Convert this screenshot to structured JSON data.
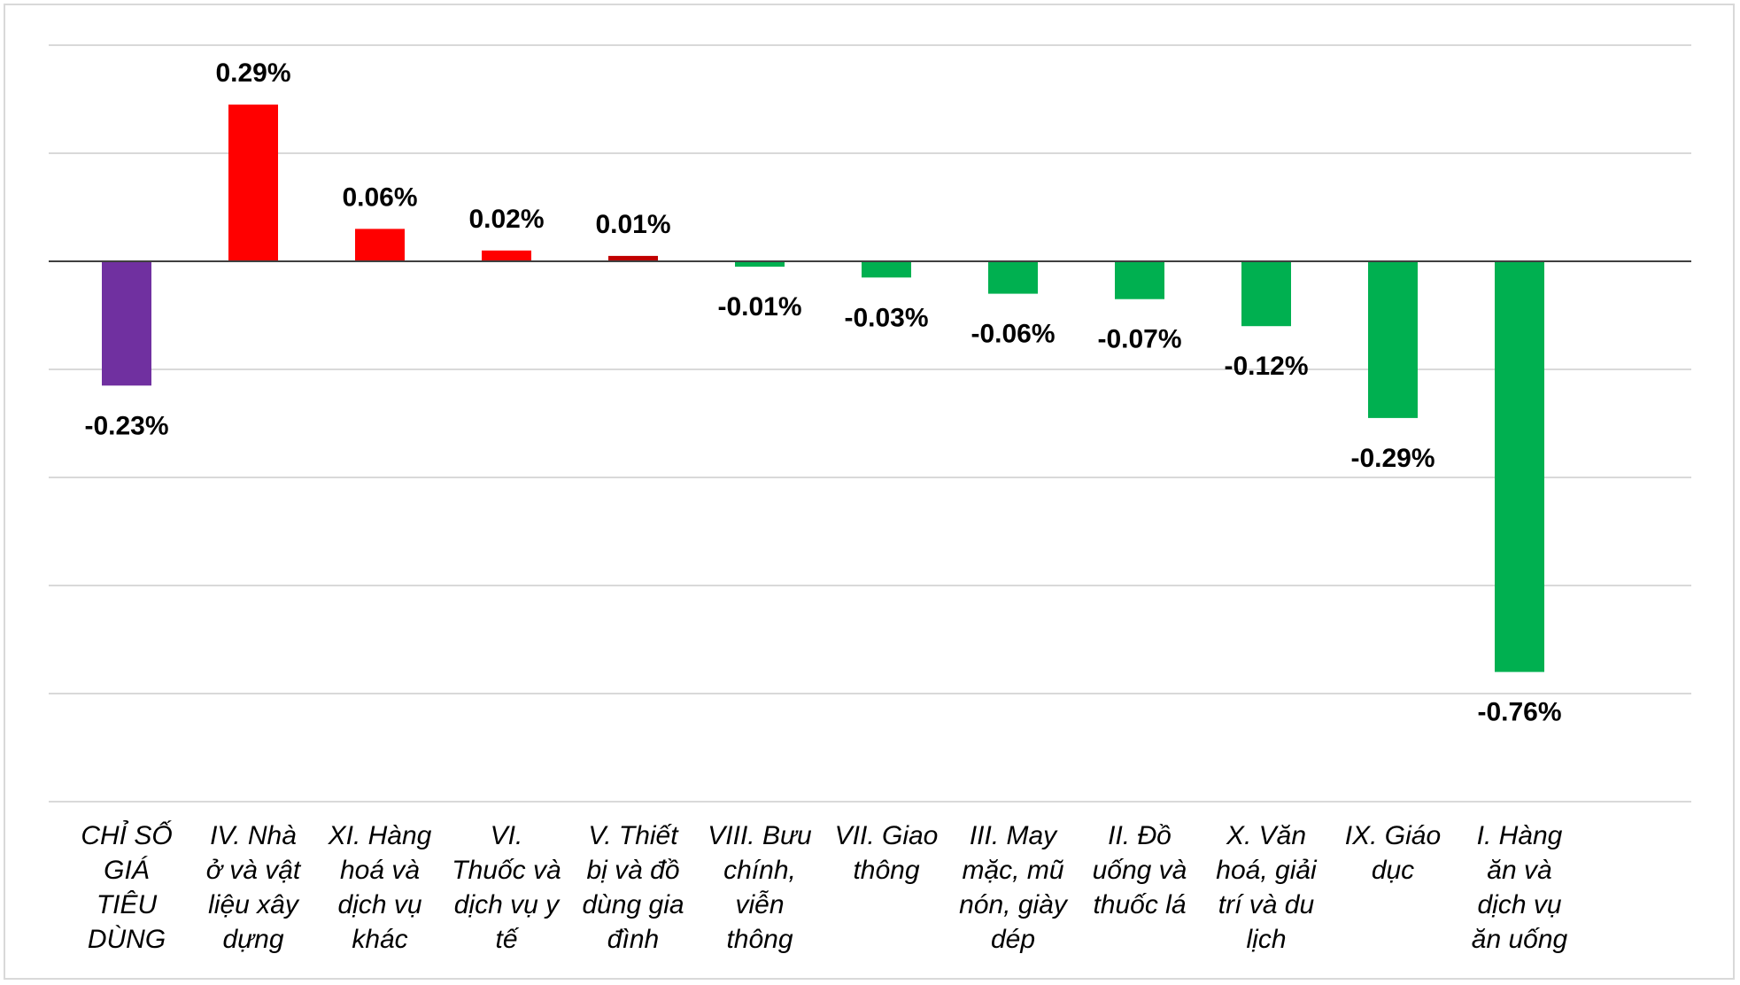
{
  "chart_data": {
    "type": "bar",
    "categories": [
      "CHỈ SỐ GIÁ TIÊU DÙNG",
      "IV. Nhà ở và vật liệu xây dựng",
      "XI. Hàng hoá và dịch vụ khác",
      "VI. Thuốc và dịch vụ y tế",
      "V. Thiết bị và đồ dùng gia đình",
      "VIII. Bưu chính, viễn thông",
      "VII. Giao thông",
      "III. May mặc, mũ nón, giày dép",
      "II. Đồ uống và thuốc lá",
      "X. Văn hoá, giải trí và du lịch",
      "IX. Giáo dục",
      "I. Hàng ăn và dịch vụ ăn uống"
    ],
    "category_lines": [
      [
        "CHỈ SỐ",
        "GIÁ",
        "TIÊU",
        "DÙNG"
      ],
      [
        "IV. Nhà",
        "ở và vật",
        "liệu xây",
        "dựng"
      ],
      [
        "XI. Hàng",
        "hoá và",
        "dịch vụ",
        "khác"
      ],
      [
        "VI.",
        "Thuốc và",
        "dịch vụ y",
        "tế"
      ],
      [
        "V. Thiết",
        "bị và đồ",
        "dùng gia",
        "đình"
      ],
      [
        "VIII. Bưu",
        "chính,",
        "viễn",
        "thông"
      ],
      [
        "VII. Giao",
        "thông"
      ],
      [
        "III. May",
        "mặc, mũ",
        "nón, giày",
        "dép"
      ],
      [
        "II. Đồ",
        "uống và",
        "thuốc lá"
      ],
      [
        "X. Văn",
        "hoá, giải",
        "trí và du",
        "lịch"
      ],
      [
        "IX. Giáo",
        "dục"
      ],
      [
        "I. Hàng",
        "ăn và",
        "dịch vụ",
        "ăn uống"
      ]
    ],
    "values": [
      -0.23,
      0.29,
      0.06,
      0.02,
      0.01,
      -0.01,
      -0.03,
      -0.06,
      -0.07,
      -0.12,
      -0.29,
      -0.76
    ],
    "value_labels": [
      "-0.23%",
      "0.29%",
      "0.06%",
      "0.02%",
      "0.01%",
      "-0.01%",
      "-0.03%",
      "-0.06%",
      "-0.07%",
      "-0.12%",
      "-0.29%",
      "-0.76%"
    ],
    "bar_colors": [
      "#7030a0",
      "#ff0000",
      "#ff0000",
      "#ff0000",
      "#c00000",
      "#00b050",
      "#00b050",
      "#00b050",
      "#00b050",
      "#00b050",
      "#00b050",
      "#00b050"
    ],
    "title": "",
    "xlabel": "",
    "ylabel": "",
    "ylim": [
      -1.0,
      0.4
    ],
    "gridline_step": 0.2,
    "grid": true,
    "legend": "none",
    "colors": {
      "gridline": "#d9d9d9",
      "zero_line": "#3f3f3f"
    }
  }
}
